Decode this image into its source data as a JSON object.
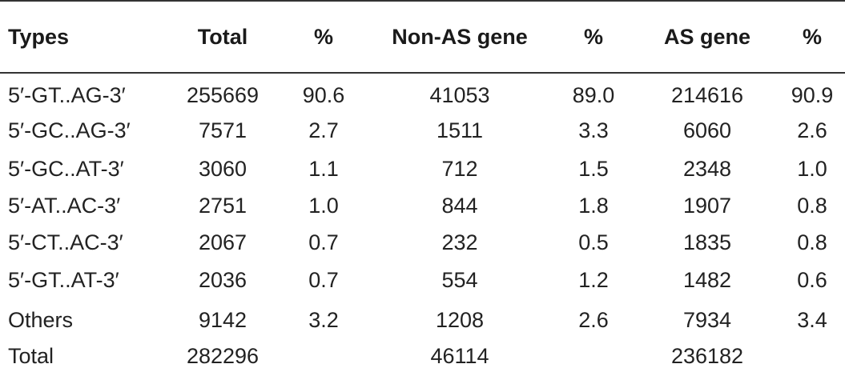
{
  "headers": [
    "Types",
    "Total",
    "%",
    "Non-AS gene",
    "%",
    "AS gene",
    "%"
  ],
  "rows": [
    [
      "5′-GT..AG-3′",
      "255669",
      "90.6",
      "41053",
      "89.0",
      "214616",
      "90.9"
    ],
    [
      "5′-GC..AG-3′",
      "7571",
      "2.7",
      "1511",
      "3.3",
      "6060",
      "2.6"
    ],
    [
      "5′-GC..AT-3′",
      "3060",
      "1.1",
      "712",
      "1.5",
      "2348",
      "1.0"
    ],
    [
      "5′-AT..AC-3′",
      "2751",
      "1.0",
      "844",
      "1.8",
      "1907",
      "0.8"
    ],
    [
      "5′-CT..AC-3′",
      "2067",
      "0.7",
      "232",
      "0.5",
      "1835",
      "0.8"
    ],
    [
      "5′-GT..AT-3′",
      "2036",
      "0.7",
      "554",
      "1.2",
      "1482",
      "0.6"
    ],
    [
      "Others",
      "9142",
      "3.2",
      "1208",
      "2.6",
      "7934",
      "3.4"
    ],
    [
      "Total",
      "282296",
      "",
      "46114",
      "",
      "236182",
      ""
    ]
  ]
}
